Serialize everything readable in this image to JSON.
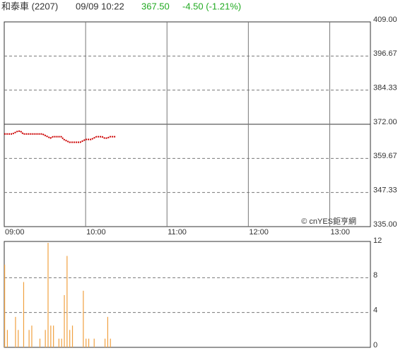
{
  "header": {
    "stock": "和泰車 (2207)",
    "time": "09/09 10:22",
    "price": "367.50",
    "change": "-4.50 (-1.21%)"
  },
  "watermark": "© cnYES鉅亨網",
  "chart_data": [
    {
      "type": "line",
      "color": "#cc0000",
      "x": [
        "09:00",
        "09:02",
        "09:04",
        "09:06",
        "09:08",
        "09:10",
        "09:12",
        "09:14",
        "09:16",
        "09:18",
        "09:20",
        "09:22",
        "09:24",
        "09:26",
        "09:28",
        "09:30",
        "09:32",
        "09:34",
        "09:36",
        "09:38",
        "09:40",
        "09:42",
        "09:44",
        "09:46",
        "09:48",
        "09:50",
        "09:52",
        "09:54",
        "09:56",
        "09:58",
        "10:00",
        "10:02",
        "10:04",
        "10:06",
        "10:08",
        "10:10",
        "10:12",
        "10:14",
        "10:16",
        "10:18",
        "10:20",
        "10:22"
      ],
      "values": [
        368.5,
        368.5,
        368.5,
        368.5,
        369.0,
        369.5,
        369.5,
        368.5,
        368.5,
        368.5,
        368.5,
        368.5,
        368.5,
        368.5,
        368.5,
        368.0,
        367.5,
        367.0,
        367.5,
        367.5,
        367.5,
        367.5,
        366.5,
        366.0,
        365.5,
        365.5,
        365.5,
        365.5,
        365.5,
        366.0,
        366.5,
        366.5,
        366.5,
        367.0,
        367.5,
        367.5,
        367.5,
        367.0,
        367.0,
        367.5,
        367.5,
        367.5
      ],
      "xlim": [
        "09:00",
        "13:30"
      ],
      "xticks": [
        "09:00",
        "10:00",
        "11:00",
        "12:00",
        "13:00"
      ],
      "ylim": [
        335,
        409
      ],
      "reference": 372,
      "yticks": [
        {
          "value": 409,
          "label": "409.00"
        },
        {
          "value": 396.67,
          "label": "396.67"
        },
        {
          "value": 384.33,
          "label": "384.33"
        },
        {
          "value": 372,
          "label": "372.00"
        },
        {
          "value": 359.67,
          "label": "359.67"
        },
        {
          "value": 347.33,
          "label": "347.33"
        },
        {
          "value": 335,
          "label": "335.00"
        }
      ],
      "grid": true
    },
    {
      "type": "bar",
      "color": "#f0a040",
      "x": [
        "09:00",
        "09:02",
        "09:04",
        "09:06",
        "09:08",
        "09:10",
        "09:12",
        "09:14",
        "09:16",
        "09:18",
        "09:20",
        "09:22",
        "09:24",
        "09:26",
        "09:28",
        "09:30",
        "09:32",
        "09:34",
        "09:36",
        "09:38",
        "09:40",
        "09:42",
        "09:44",
        "09:46",
        "09:48",
        "09:50",
        "09:52",
        "09:54",
        "09:56",
        "09:58",
        "10:00",
        "10:02",
        "10:04",
        "10:06",
        "10:08",
        "10:10",
        "10:12",
        "10:14",
        "10:16",
        "10:18",
        "10:20",
        "10:22"
      ],
      "values": [
        9.5,
        2,
        0,
        0,
        3.5,
        2,
        0,
        7.5,
        0,
        2,
        2.5,
        0,
        0,
        1,
        0,
        2,
        12,
        2.5,
        2.5,
        0,
        1,
        1,
        6,
        10.5,
        2,
        2.5,
        0,
        0,
        0,
        6.5,
        1,
        1,
        0,
        1,
        0,
        0,
        0,
        1,
        3.5,
        1,
        0,
        0
      ],
      "xlim": [
        "09:00",
        "13:30"
      ],
      "ylim": [
        0,
        12
      ],
      "yticks": [
        0,
        4,
        8,
        12
      ],
      "grid": true
    }
  ]
}
